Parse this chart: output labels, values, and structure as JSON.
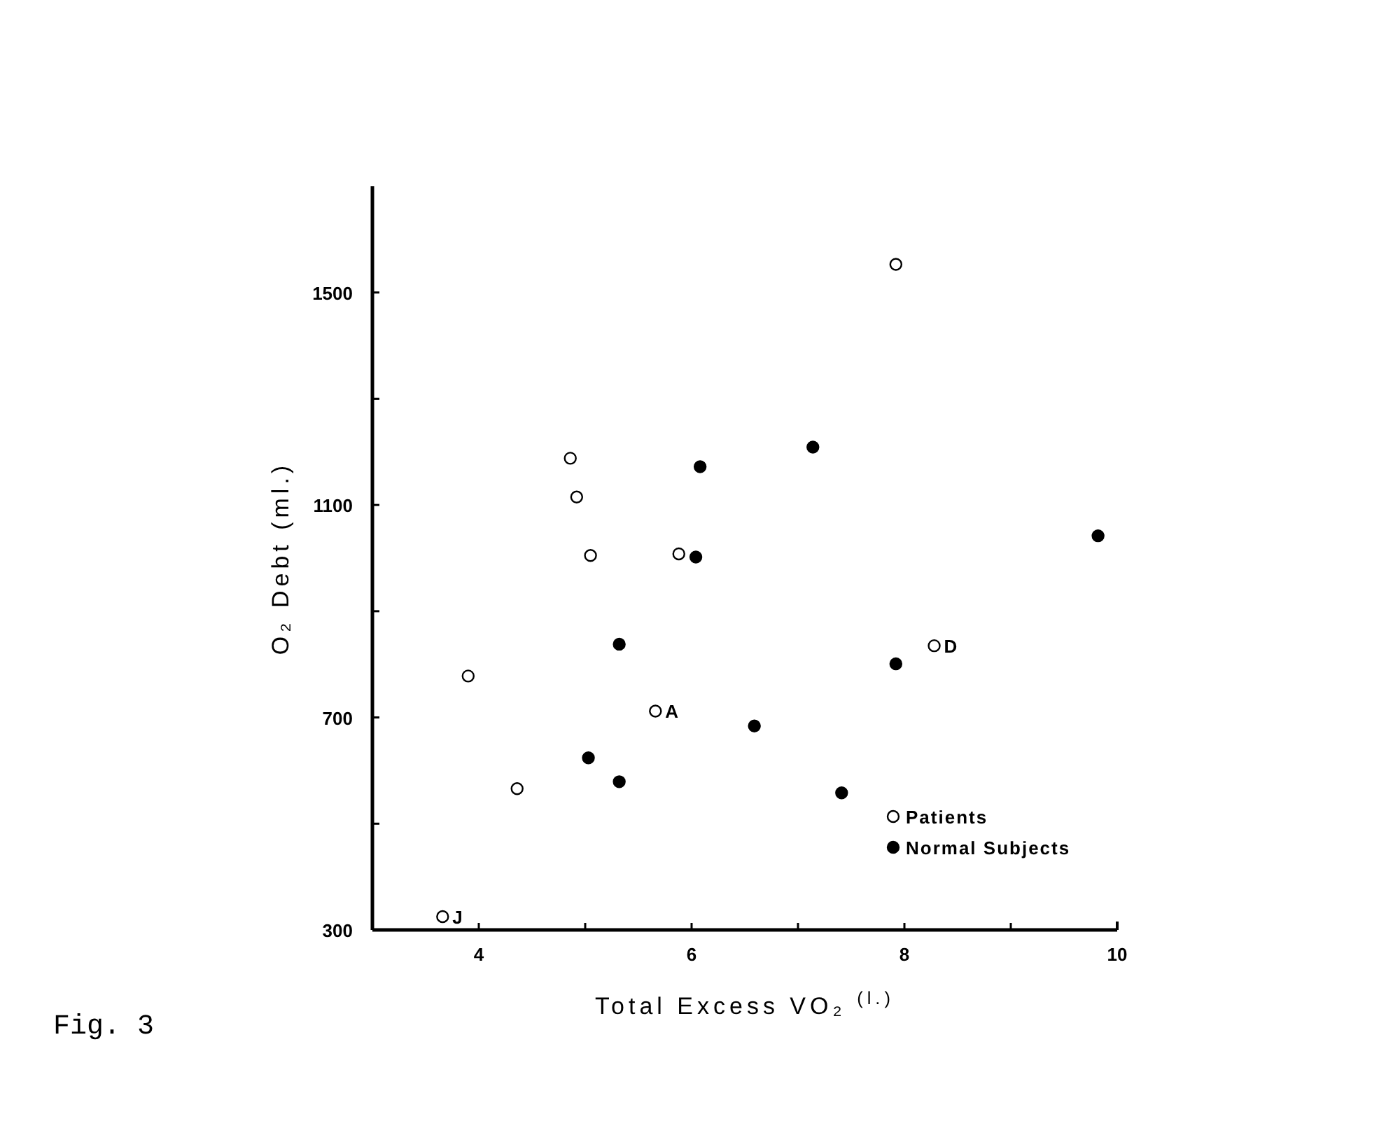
{
  "chart_data": {
    "type": "scatter",
    "xlabel": "Total Excess VO₂ $^{(l.)}$",
    "ylabel": "O₂ Debt (ml.)",
    "xlim": [
      3,
      10
    ],
    "xticks": [
      4,
      {
        "value": 5,
        "label": null
      },
      6,
      {
        "value": 7,
        "label": null
      },
      8,
      {
        "value": 9,
        "label": null
      },
      10
    ],
    "ylim": [
      300,
      1700
    ],
    "yticks": [
      300,
      {
        "value": 500,
        "label": null
      },
      700,
      {
        "value": 900,
        "label": null
      },
      1100,
      {
        "value": 1300,
        "label": null
      },
      1500
    ],
    "marker": "circle",
    "legend": "bottom right",
    "grid": false,
    "series": [
      {
        "name": "Patients",
        "color": "#ffffff",
        "x": [
          3.66,
          3.9,
          4.36,
          4.86,
          4.92,
          5.05,
          5.88,
          5.66,
          7.92,
          8.28
        ],
        "values": [
          325,
          778,
          566,
          1188,
          1115,
          1005,
          1008,
          712,
          1553,
          835
        ]
      },
      {
        "name": "Normal Subjects",
        "color": "#000000",
        "x": [
          6.08,
          6.04,
          7.14,
          5.32,
          5.03,
          5.32,
          6.59,
          7.41,
          7.92,
          9.82
        ],
        "values": [
          1172,
          1002,
          1209,
          838,
          624,
          579,
          684,
          558,
          801,
          1042
        ]
      }
    ],
    "annotations": [
      {
        "text": "J",
        "x": 3.66,
        "y": 325
      },
      {
        "text": "A",
        "x": 5.66,
        "y": 712
      },
      {
        "text": "D",
        "x": 8.28,
        "y": 835
      },
      "Fig. 3"
    ]
  }
}
